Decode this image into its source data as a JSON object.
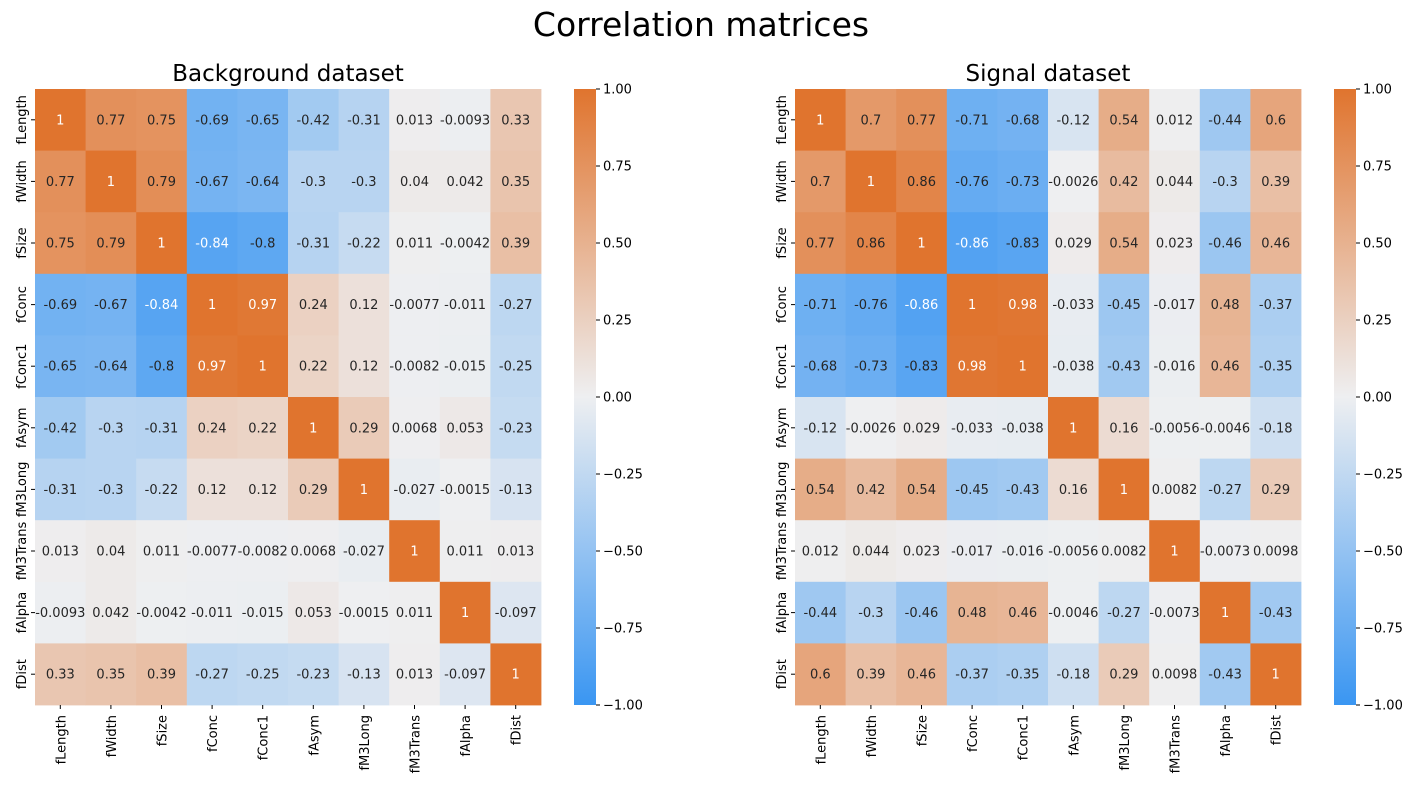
{
  "figure": {
    "title": "Correlation matrices"
  },
  "colorscale": {
    "low": "#3a96f2",
    "mid": "#eeeff1",
    "high": "#e0742e"
  },
  "chart_data": [
    {
      "type": "heatmap",
      "title": "Background dataset",
      "labels": [
        "fLength",
        "fWidth",
        "fSize",
        "fConc",
        "fConc1",
        "fAsym",
        "fM3Long",
        "fM3Trans",
        "fAlpha",
        "fDist"
      ],
      "values": [
        [
          1,
          0.77,
          0.75,
          -0.69,
          -0.65,
          -0.42,
          -0.31,
          0.013,
          -0.0093,
          0.33
        ],
        [
          0.77,
          1,
          0.79,
          -0.67,
          -0.64,
          -0.3,
          -0.3,
          0.04,
          0.042,
          0.35
        ],
        [
          0.75,
          0.79,
          1,
          -0.84,
          -0.8,
          -0.31,
          -0.22,
          0.011,
          -0.0042,
          0.39
        ],
        [
          -0.69,
          -0.67,
          -0.84,
          1,
          0.97,
          0.24,
          0.12,
          -0.0077,
          -0.011,
          -0.27
        ],
        [
          -0.65,
          -0.64,
          -0.8,
          0.97,
          1,
          0.22,
          0.12,
          -0.0082,
          -0.015,
          -0.25
        ],
        [
          -0.42,
          -0.3,
          -0.31,
          0.24,
          0.22,
          1,
          0.29,
          0.0068,
          0.053,
          -0.23
        ],
        [
          -0.31,
          -0.3,
          -0.22,
          0.12,
          0.12,
          0.29,
          1,
          -0.027,
          -0.0015,
          -0.13
        ],
        [
          0.013,
          0.04,
          0.011,
          -0.0077,
          -0.0082,
          0.0068,
          -0.027,
          1,
          0.011,
          0.013
        ],
        [
          -0.0093,
          0.042,
          -0.0042,
          -0.011,
          -0.015,
          0.053,
          -0.0015,
          0.011,
          1,
          -0.097
        ],
        [
          0.33,
          0.35,
          0.39,
          -0.27,
          -0.25,
          -0.23,
          -0.13,
          0.013,
          -0.097,
          1
        ]
      ],
      "vmin": -1,
      "vmax": 1,
      "colorbar_ticks": [
        "1.00",
        "0.75",
        "0.50",
        "0.25",
        "0.00",
        "−0.25",
        "−0.50",
        "−0.75",
        "−1.00"
      ]
    },
    {
      "type": "heatmap",
      "title": "Signal dataset",
      "labels": [
        "fLength",
        "fWidth",
        "fSize",
        "fConc",
        "fConc1",
        "fAsym",
        "fM3Long",
        "fM3Trans",
        "fAlpha",
        "fDist"
      ],
      "values": [
        [
          1,
          0.7,
          0.77,
          -0.71,
          -0.68,
          -0.12,
          0.54,
          0.012,
          -0.44,
          0.6
        ],
        [
          0.7,
          1,
          0.86,
          -0.76,
          -0.73,
          -0.0026,
          0.42,
          0.044,
          -0.3,
          0.39
        ],
        [
          0.77,
          0.86,
          1,
          -0.86,
          -0.83,
          0.029,
          0.54,
          0.023,
          -0.46,
          0.46
        ],
        [
          -0.71,
          -0.76,
          -0.86,
          1,
          0.98,
          -0.033,
          -0.45,
          -0.017,
          0.48,
          -0.37
        ],
        [
          -0.68,
          -0.73,
          -0.83,
          0.98,
          1,
          -0.038,
          -0.43,
          -0.016,
          0.46,
          -0.35
        ],
        [
          -0.12,
          -0.0026,
          0.029,
          -0.033,
          -0.038,
          1,
          0.16,
          -0.0056,
          -0.0046,
          -0.18
        ],
        [
          0.54,
          0.42,
          0.54,
          -0.45,
          -0.43,
          0.16,
          1,
          0.0082,
          -0.27,
          0.29
        ],
        [
          0.012,
          0.044,
          0.023,
          -0.017,
          -0.016,
          -0.0056,
          0.0082,
          1,
          -0.0073,
          0.0098
        ],
        [
          -0.44,
          -0.3,
          -0.46,
          0.48,
          0.46,
          -0.0046,
          -0.27,
          -0.0073,
          1,
          -0.43
        ],
        [
          0.6,
          0.39,
          0.46,
          -0.37,
          -0.35,
          -0.18,
          0.29,
          0.0098,
          -0.43,
          1
        ]
      ],
      "vmin": -1,
      "vmax": 1,
      "colorbar_ticks": [
        "1.00",
        "0.75",
        "0.50",
        "0.25",
        "0.00",
        "−0.25",
        "−0.50",
        "−0.75",
        "−1.00"
      ]
    }
  ]
}
